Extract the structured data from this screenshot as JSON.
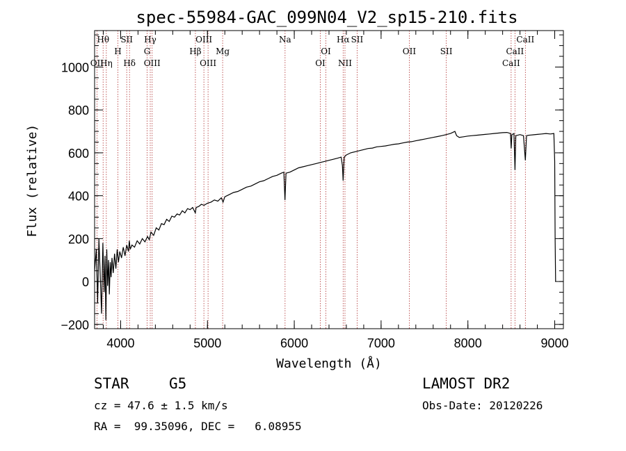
{
  "title": "spec-55984-GAC_099N04_V2_sp15-210.fits",
  "info": {
    "class": "STAR",
    "subclass": "G5",
    "survey": "LAMOST DR2",
    "cz": "cz = 47.6 ± 1.5 km/s",
    "obs_date": "Obs-Date: 20120226",
    "coords": "RA =  99.35096, DEC =   6.08955"
  },
  "colors": {
    "spectrum": "#000000",
    "line_marker": "#b03030",
    "axes": "#000000"
  },
  "chart_data": {
    "type": "line",
    "title": "spec-55984-GAC_099N04_V2_sp15-210.fits",
    "xlabel": "Wavelength (Å)",
    "ylabel": "Flux (relative)",
    "xlim": [
      3700,
      9100
    ],
    "ylim": [
      -220,
      1170
    ],
    "xticks": [
      4000,
      5000,
      6000,
      7000,
      8000,
      9000
    ],
    "yticks": [
      -200,
      0,
      200,
      400,
      600,
      800,
      1000
    ],
    "grid": false,
    "series": [
      {
        "points": [
          [
            3700,
            50
          ],
          [
            3720,
            150
          ],
          [
            3735,
            -100
          ],
          [
            3750,
            200
          ],
          [
            3765,
            30
          ],
          [
            3780,
            -150
          ],
          [
            3795,
            180
          ],
          [
            3810,
            -50
          ],
          [
            3820,
            120
          ],
          [
            3830,
            -180
          ],
          [
            3840,
            150
          ],
          [
            3850,
            -20
          ],
          [
            3860,
            100
          ],
          [
            3870,
            -60
          ],
          [
            3880,
            90
          ],
          [
            3890,
            20
          ],
          [
            3900,
            110
          ],
          [
            3915,
            40
          ],
          [
            3930,
            130
          ],
          [
            3945,
            60
          ],
          [
            3960,
            150
          ],
          [
            3975,
            90
          ],
          [
            3990,
            140
          ],
          [
            4010,
            110
          ],
          [
            4030,
            160
          ],
          [
            4050,
            120
          ],
          [
            4070,
            170
          ],
          [
            4090,
            140
          ],
          [
            4100,
            190
          ],
          [
            4110,
            150
          ],
          [
            4130,
            170
          ],
          [
            4160,
            160
          ],
          [
            4190,
            190
          ],
          [
            4220,
            175
          ],
          [
            4250,
            200
          ],
          [
            4280,
            185
          ],
          [
            4310,
            210
          ],
          [
            4330,
            195
          ],
          [
            4350,
            230
          ],
          [
            4380,
            215
          ],
          [
            4410,
            250
          ],
          [
            4440,
            240
          ],
          [
            4470,
            270
          ],
          [
            4500,
            265
          ],
          [
            4530,
            290
          ],
          [
            4560,
            280
          ],
          [
            4590,
            305
          ],
          [
            4620,
            300
          ],
          [
            4650,
            315
          ],
          [
            4680,
            310
          ],
          [
            4710,
            330
          ],
          [
            4740,
            320
          ],
          [
            4770,
            340
          ],
          [
            4800,
            335
          ],
          [
            4830,
            345
          ],
          [
            4860,
            320
          ],
          [
            4870,
            345
          ],
          [
            4900,
            350
          ],
          [
            4930,
            360
          ],
          [
            4960,
            355
          ],
          [
            5000,
            365
          ],
          [
            5040,
            370
          ],
          [
            5080,
            380
          ],
          [
            5120,
            375
          ],
          [
            5160,
            390
          ],
          [
            5180,
            370
          ],
          [
            5200,
            395
          ],
          [
            5250,
            405
          ],
          [
            5300,
            415
          ],
          [
            5350,
            420
          ],
          [
            5400,
            430
          ],
          [
            5450,
            440
          ],
          [
            5500,
            445
          ],
          [
            5550,
            455
          ],
          [
            5600,
            465
          ],
          [
            5650,
            470
          ],
          [
            5700,
            480
          ],
          [
            5750,
            490
          ],
          [
            5800,
            495
          ],
          [
            5850,
            505
          ],
          [
            5880,
            510
          ],
          [
            5893,
            380
          ],
          [
            5905,
            505
          ],
          [
            5950,
            510
          ],
          [
            6000,
            520
          ],
          [
            6050,
            530
          ],
          [
            6100,
            535
          ],
          [
            6150,
            540
          ],
          [
            6200,
            545
          ],
          [
            6250,
            550
          ],
          [
            6300,
            555
          ],
          [
            6350,
            560
          ],
          [
            6400,
            565
          ],
          [
            6450,
            570
          ],
          [
            6500,
            575
          ],
          [
            6540,
            580
          ],
          [
            6555,
            540
          ],
          [
            6563,
            470
          ],
          [
            6575,
            580
          ],
          [
            6600,
            590
          ],
          [
            6650,
            600
          ],
          [
            6700,
            605
          ],
          [
            6750,
            610
          ],
          [
            6800,
            615
          ],
          [
            6850,
            620
          ],
          [
            6900,
            622
          ],
          [
            6950,
            628
          ],
          [
            7000,
            630
          ],
          [
            7050,
            632
          ],
          [
            7100,
            636
          ],
          [
            7150,
            640
          ],
          [
            7200,
            642
          ],
          [
            7250,
            646
          ],
          [
            7300,
            650
          ],
          [
            7350,
            652
          ],
          [
            7400,
            656
          ],
          [
            7450,
            660
          ],
          [
            7500,
            664
          ],
          [
            7550,
            668
          ],
          [
            7600,
            672
          ],
          [
            7650,
            676
          ],
          [
            7700,
            680
          ],
          [
            7750,
            685
          ],
          [
            7800,
            690
          ],
          [
            7850,
            700
          ],
          [
            7870,
            680
          ],
          [
            7900,
            672
          ],
          [
            7950,
            675
          ],
          [
            8000,
            678
          ],
          [
            8050,
            680
          ],
          [
            8100,
            682
          ],
          [
            8150,
            684
          ],
          [
            8200,
            686
          ],
          [
            8250,
            688
          ],
          [
            8300,
            690
          ],
          [
            8350,
            692
          ],
          [
            8400,
            694
          ],
          [
            8450,
            695
          ],
          [
            8490,
            690
          ],
          [
            8498,
            620
          ],
          [
            8506,
            685
          ],
          [
            8530,
            690
          ],
          [
            8542,
            520
          ],
          [
            8552,
            680
          ],
          [
            8600,
            685
          ],
          [
            8640,
            680
          ],
          [
            8662,
            565
          ],
          [
            8675,
            680
          ],
          [
            8700,
            682
          ],
          [
            8750,
            684
          ],
          [
            8800,
            686
          ],
          [
            8850,
            688
          ],
          [
            8900,
            690
          ],
          [
            8950,
            688
          ],
          [
            8990,
            690
          ],
          [
            9000,
            560
          ],
          [
            9005,
            200
          ],
          [
            9010,
            0
          ]
        ]
      }
    ],
    "spectral_lines": [
      {
        "label": "Hθ",
        "wave": 3798,
        "row": 1
      },
      {
        "label": "OII",
        "wave": 3727,
        "row": 3
      },
      {
        "label": "Hη",
        "wave": 3835,
        "row": 3
      },
      {
        "label": "H",
        "wave": 3968,
        "row": 2
      },
      {
        "label": "SII",
        "wave": 4070,
        "row": 1
      },
      {
        "label": "Hδ",
        "wave": 4102,
        "row": 3
      },
      {
        "label": "Hγ",
        "wave": 4341,
        "row": 1
      },
      {
        "label": "G",
        "wave": 4305,
        "row": 2
      },
      {
        "label": "OIII",
        "wave": 4363,
        "row": 3
      },
      {
        "label": "OIII",
        "wave": 4959,
        "row": 1
      },
      {
        "label": "Hβ",
        "wave": 4861,
        "row": 2
      },
      {
        "label": "OIII",
        "wave": 5007,
        "row": 3
      },
      {
        "label": "Mg",
        "wave": 5175,
        "row": 2
      },
      {
        "label": "Na",
        "wave": 5894,
        "row": 1
      },
      {
        "label": "OI",
        "wave": 6364,
        "row": 2
      },
      {
        "label": "OI",
        "wave": 6300,
        "row": 3
      },
      {
        "label": "Hα",
        "wave": 6563,
        "row": 1
      },
      {
        "label": "SII",
        "wave": 6724,
        "row": 1
      },
      {
        "label": "NII",
        "wave": 6584,
        "row": 3
      },
      {
        "label": "OII",
        "wave": 7325,
        "row": 2
      },
      {
        "label": "SII",
        "wave": 7751,
        "row": 2
      },
      {
        "label": "CaII",
        "wave": 8662,
        "row": 1
      },
      {
        "label": "CaII",
        "wave": 8542,
        "row": 2
      },
      {
        "label": "CaII",
        "wave": 8498,
        "row": 3
      }
    ]
  }
}
